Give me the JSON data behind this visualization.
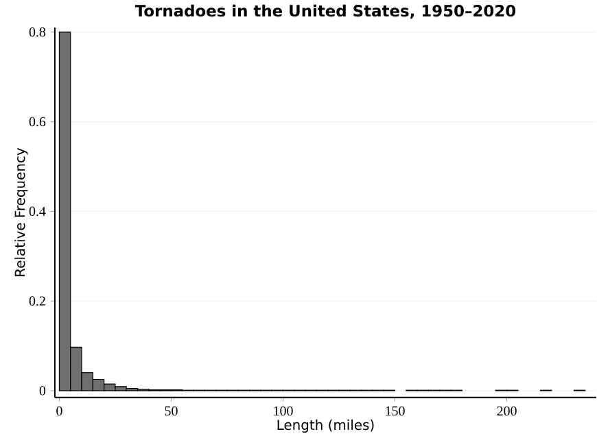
{
  "chart_data": {
    "type": "histogram",
    "title": "Tornadoes in the United States, 1950–2020",
    "xlabel": "Length (miles)",
    "ylabel": "Relative Frequency",
    "bins": [
      0,
      5,
      10,
      15,
      20,
      25,
      30,
      35,
      40,
      45,
      50,
      55,
      60,
      65,
      70,
      75,
      80,
      85,
      90,
      95,
      100,
      105,
      110,
      115,
      120,
      125,
      130,
      135,
      140,
      145,
      150,
      155,
      160,
      165,
      170,
      175,
      180,
      185,
      190,
      195,
      200,
      205,
      210,
      215,
      220,
      225,
      230,
      235,
      240
    ],
    "values": [
      0.8,
      0.097,
      0.04,
      0.025,
      0.015,
      0.009,
      0.005,
      0.003,
      0.002,
      0.002,
      0.002,
      0.001,
      0.001,
      0.001,
      0.001,
      0.001,
      0.001,
      0.001,
      0.001,
      0.001,
      0.001,
      0.001,
      0.001,
      0.001,
      0.001,
      0.001,
      0.001,
      0.001,
      0.001,
      0.001,
      0,
      0.001,
      0.001,
      0.001,
      0.001,
      0.001,
      0,
      0,
      0,
      0.001,
      0.001,
      0,
      0,
      0.001,
      0,
      0,
      0.001,
      0
    ],
    "color": "#6e6e6e",
    "xlim": [
      -2,
      240
    ],
    "ylim": [
      -0.015,
      0.81
    ],
    "xticks": [
      0,
      50,
      100,
      150,
      200
    ],
    "yticks": [
      0,
      0.2,
      0.4,
      0.6,
      0.8
    ],
    "grid": "y"
  }
}
